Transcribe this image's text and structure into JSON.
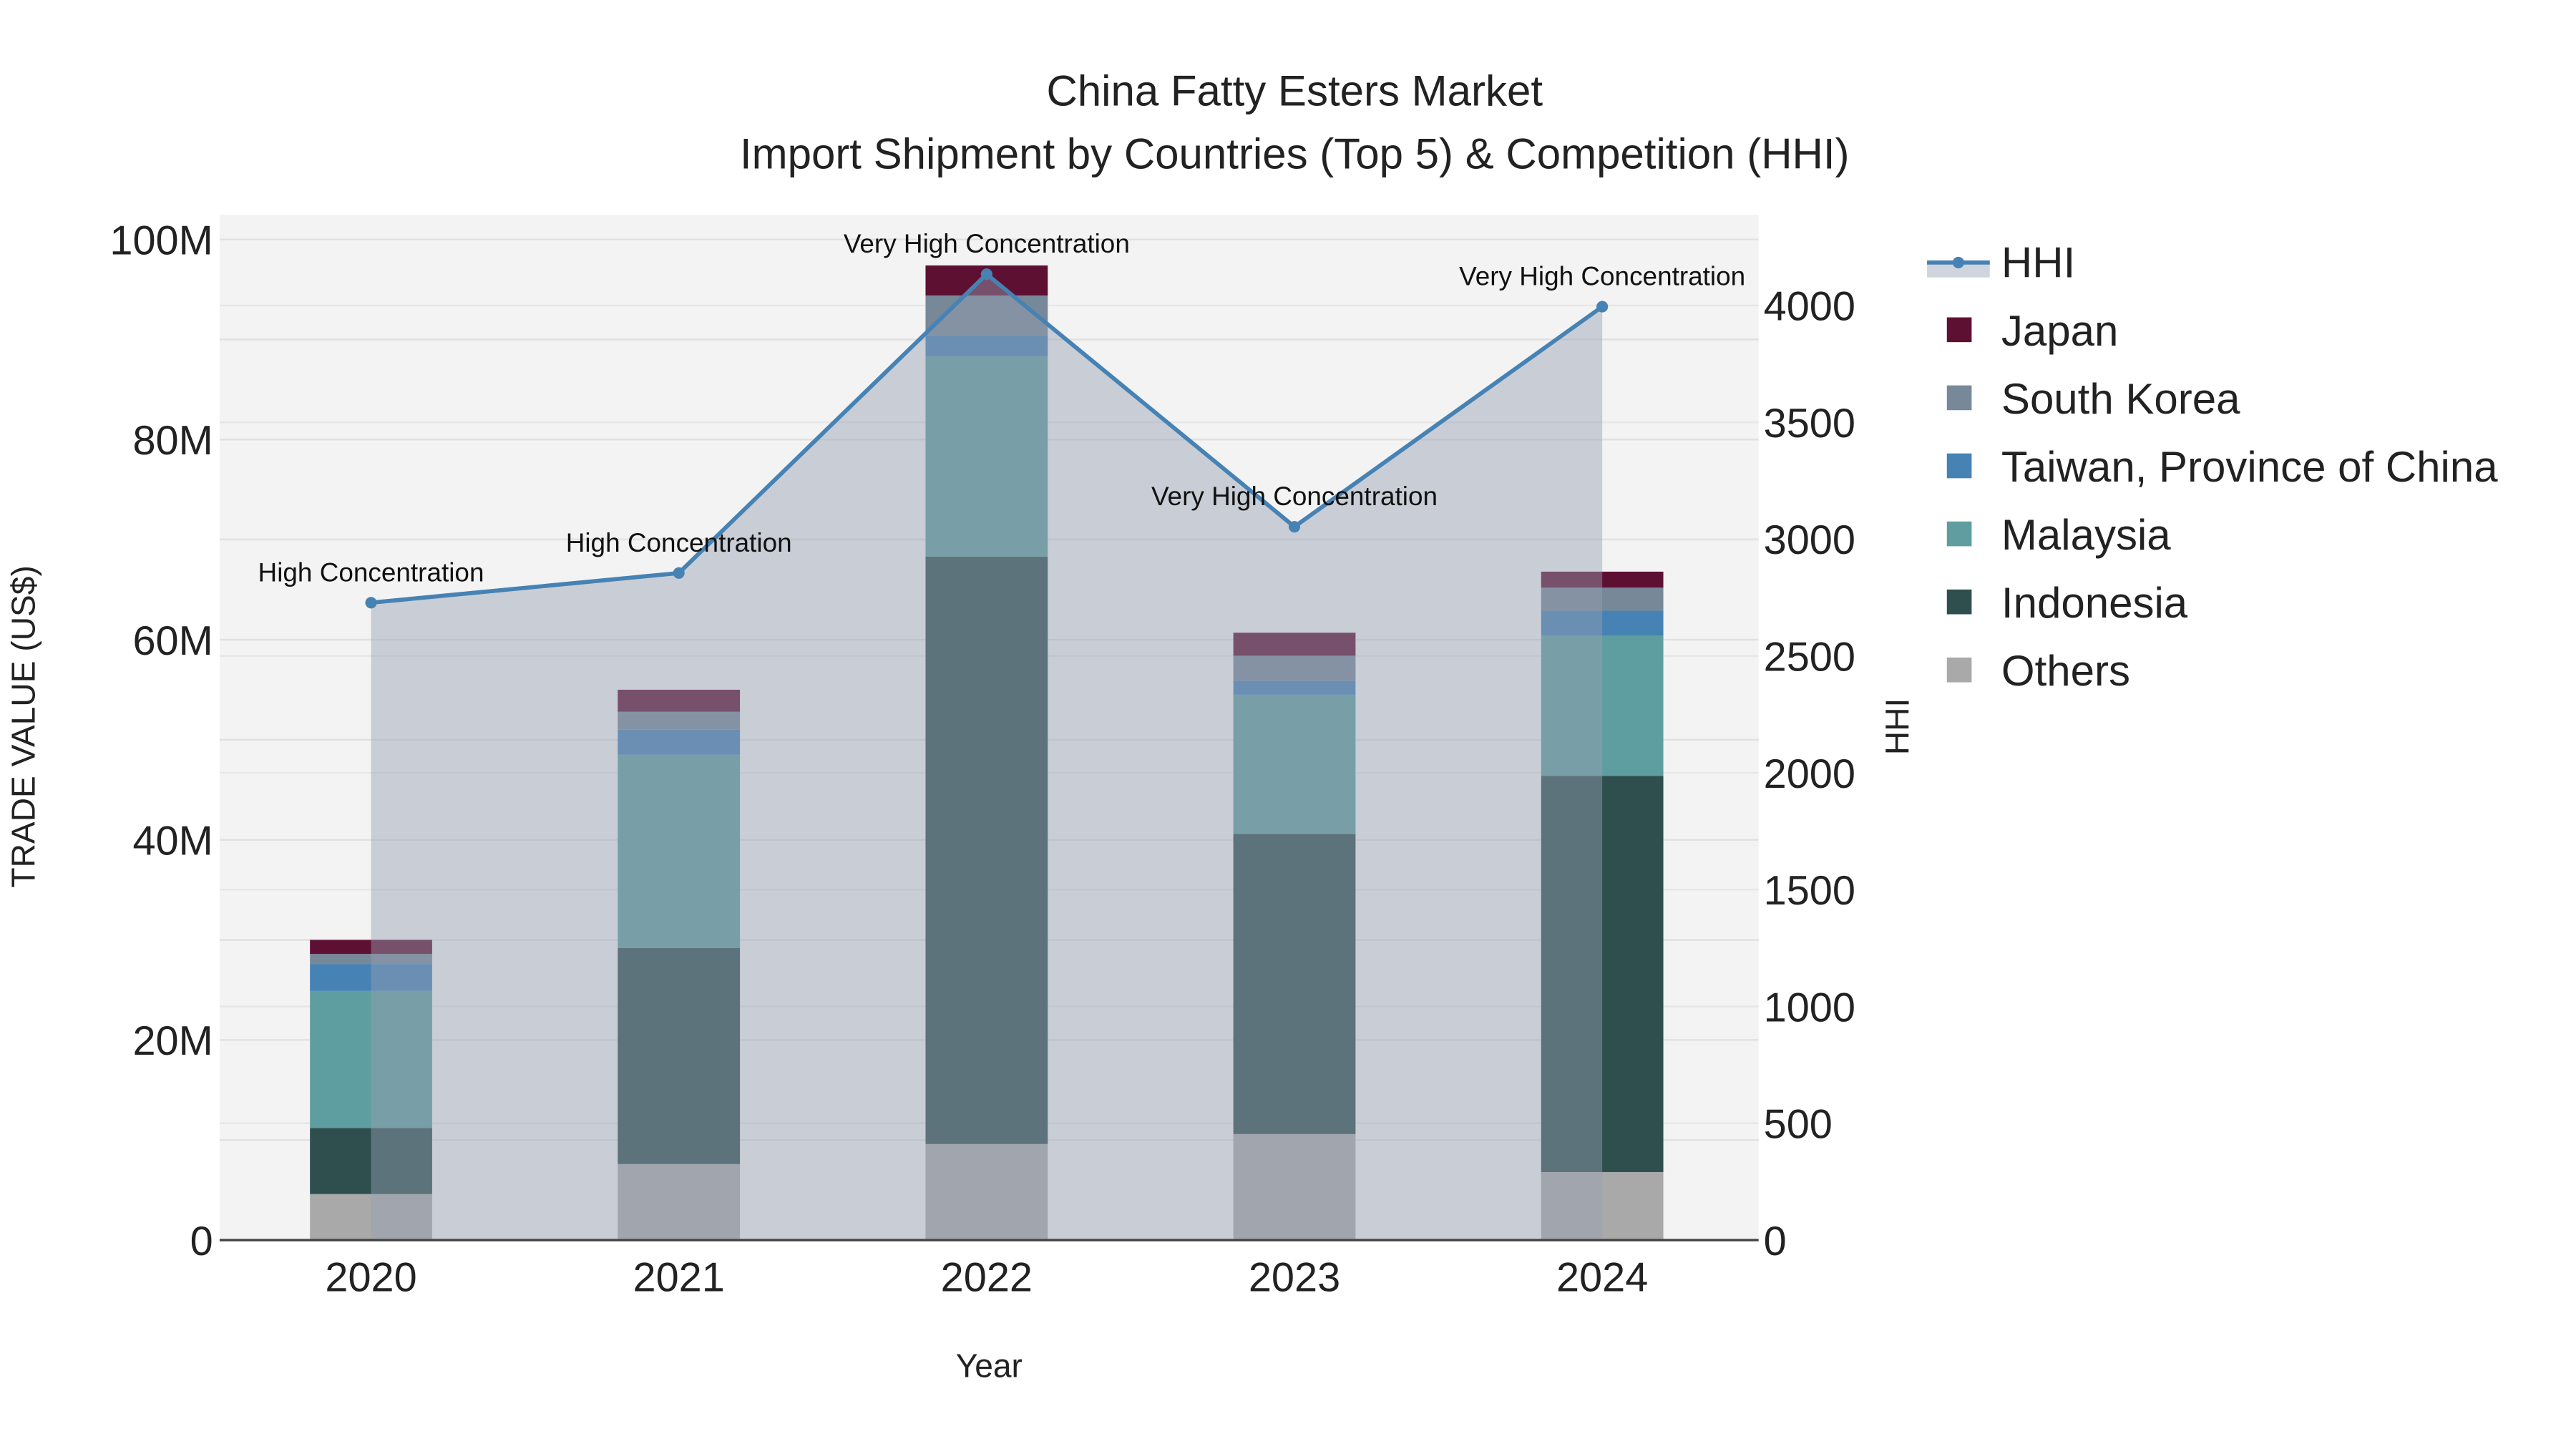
{
  "chart_data": {
    "type": "bar",
    "stacked": true,
    "title": "China Fatty Esters Market",
    "subtitle": "Import Shipment by Countries (Top 5) & Competition (HHI)",
    "xlabel": "Year",
    "ylabel": "TRADE VALUE (US$)",
    "y2label": "HHI",
    "categories": [
      "2020",
      "2021",
      "2022",
      "2023",
      "2024"
    ],
    "ylim": [
      0,
      102
    ],
    "yunit": "M",
    "yticks": [
      "0",
      "20M",
      "40M",
      "60M",
      "80M",
      "100M"
    ],
    "y2lim": [
      0,
      4380
    ],
    "y2ticks": [
      "0",
      "500",
      "1000",
      "1500",
      "2000",
      "2500",
      "3000",
      "3500",
      "4000"
    ],
    "series": [
      {
        "name": "Others",
        "color": "#a9a9a9",
        "values": [
          4.6,
          7.6,
          9.6,
          10.6,
          6.8
        ]
      },
      {
        "name": "Indonesia",
        "color": "#2f4f4f",
        "values": [
          6.6,
          21.6,
          58.7,
          30.0,
          39.6
        ]
      },
      {
        "name": "Malaysia",
        "color": "#5f9ea0",
        "values": [
          13.7,
          19.3,
          20.0,
          13.9,
          14.0
        ]
      },
      {
        "name": "Taiwan, Province of China",
        "color": "#4682b4",
        "values": [
          2.7,
          2.5,
          2.1,
          1.4,
          2.5
        ]
      },
      {
        "name": "South Korea",
        "color": "#778899",
        "values": [
          1.0,
          1.8,
          4.0,
          2.5,
          2.3
        ]
      },
      {
        "name": "Japan",
        "color": "#5e1033",
        "values": [
          1.4,
          2.2,
          3.0,
          2.3,
          1.6
        ]
      }
    ],
    "hhi": {
      "name": "HHI",
      "color": "#4682b4",
      "values": [
        2728,
        2855,
        4134,
        3053,
        3995
      ],
      "annotations": [
        "High Concentration",
        "High Concentration",
        "Very High Concentration",
        "Very High Concentration",
        "Very High Concentration"
      ]
    },
    "legend_order": [
      "HHI",
      "Japan",
      "South Korea",
      "Taiwan, Province of China",
      "Malaysia",
      "Indonesia",
      "Others"
    ],
    "legend_position": "right",
    "grid": true
  }
}
